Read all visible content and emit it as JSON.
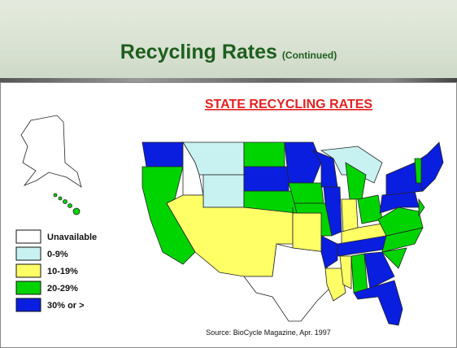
{
  "header": {
    "title": "Recycling Rates",
    "subtitle": "(Continued)"
  },
  "map": {
    "title": "STATE RECYCLING RATES",
    "legend": [
      {
        "label": "Unavailable",
        "color": "#ffffff"
      },
      {
        "label": "0-9%",
        "color": "#c8f2f2"
      },
      {
        "label": "10-19%",
        "color": "#ffff66"
      },
      {
        "label": "20-29%",
        "color": "#00d400"
      },
      {
        "label": "30% or >",
        "color": "#0a1ee0"
      }
    ],
    "source": "Source: BioCycle Magazine, Apr. 1997"
  }
}
